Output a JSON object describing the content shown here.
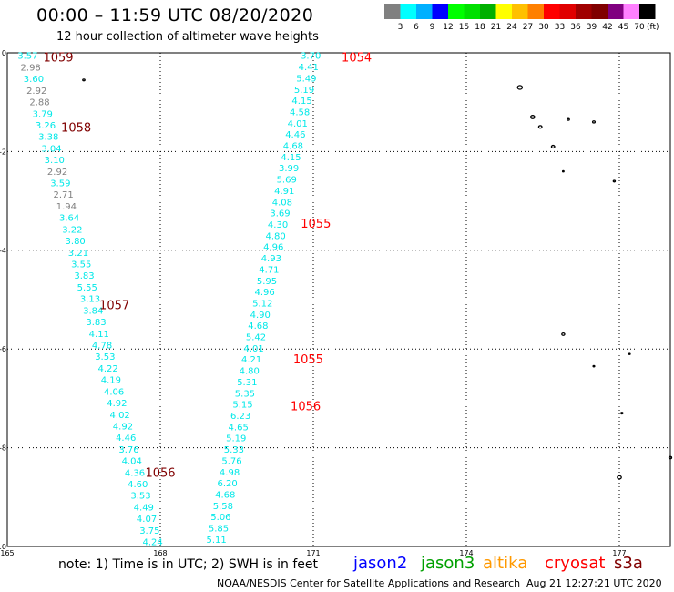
{
  "title": "00:00 – 11:59 UTC 08/20/2020",
  "subtitle": "12 hour collection of altimeter wave heights",
  "colorbar": {
    "colors": [
      "#808080",
      "#00ffff",
      "#00b0ff",
      "#0000ff",
      "#00ff00",
      "#00e000",
      "#00b000",
      "#ffff00",
      "#ffc000",
      "#ff8000",
      "#ff0000",
      "#e00000",
      "#a00000",
      "#800000",
      "#800080",
      "#ff80ff",
      "#000000"
    ],
    "labels": [
      "3",
      "6",
      "9",
      "12",
      "15",
      "18",
      "21",
      "24",
      "27",
      "30",
      "33",
      "36",
      "39",
      "42",
      "45",
      "70"
    ],
    "unit": "(ft)"
  },
  "axes": {
    "lon_ticks": [
      165,
      168,
      171,
      174,
      177
    ],
    "lon_labels": [
      "165",
      "168",
      "171",
      "174",
      "177"
    ],
    "lat_ticks": [
      0,
      -2,
      -4,
      -6,
      -8,
      -10
    ],
    "lat_labels": [
      "0",
      "-2",
      "-4",
      "-6",
      "-8",
      "-10"
    ],
    "lon_range": [
      165,
      178
    ],
    "lat_range": [
      -10,
      0
    ]
  },
  "orbits": [
    {
      "id": "1059",
      "color": "#800000",
      "lon": 166.0,
      "lat": -0.08
    },
    {
      "id": "1058",
      "color": "#800000",
      "lon": 166.35,
      "lat": -1.5
    },
    {
      "id": "1057",
      "color": "#800000",
      "lon": 167.1,
      "lat": -5.1
    },
    {
      "id": "1056",
      "color": "#800000",
      "lon": 168.0,
      "lat": -8.5
    },
    {
      "id": "1054",
      "color": "#ff0000",
      "lon": 171.85,
      "lat": -0.08
    },
    {
      "id": "1055",
      "color": "#ff0000",
      "lon": 171.05,
      "lat": -3.45
    },
    {
      "id": "1055",
      "color": "#ff0000",
      "lon": 170.9,
      "lat": -6.2
    },
    {
      "id": "1056",
      "color": "#ff0000",
      "lon": 170.85,
      "lat": -7.15
    }
  ],
  "track_west": [
    {
      "v": "3.57",
      "c": "#00e8e8"
    },
    {
      "v": "2.98",
      "c": "#808080"
    },
    {
      "v": "3.60",
      "c": "#00e8e8"
    },
    {
      "v": "2.92",
      "c": "#808080"
    },
    {
      "v": "2.88",
      "c": "#808080"
    },
    {
      "v": "3.79",
      "c": "#00e8e8"
    },
    {
      "v": "3.26",
      "c": "#00e8e8"
    },
    {
      "v": "3.38",
      "c": "#00e8e8"
    },
    {
      "v": "3.04",
      "c": "#00e8e8"
    },
    {
      "v": "3.10",
      "c": "#00e8e8"
    },
    {
      "v": "2.92",
      "c": "#808080"
    },
    {
      "v": "3.59",
      "c": "#00e8e8"
    },
    {
      "v": "2.71",
      "c": "#808080"
    },
    {
      "v": "1.94",
      "c": "#808080"
    },
    {
      "v": "3.64",
      "c": "#00e8e8"
    },
    {
      "v": "3.22",
      "c": "#00e8e8"
    },
    {
      "v": "3.80",
      "c": "#00e8e8"
    },
    {
      "v": "3.21",
      "c": "#00e8e8"
    },
    {
      "v": "3.55",
      "c": "#00e8e8"
    },
    {
      "v": "3.83",
      "c": "#00e8e8"
    },
    {
      "v": "5.55",
      "c": "#00e8e8"
    },
    {
      "v": "3.13",
      "c": "#00e8e8"
    },
    {
      "v": "3.84",
      "c": "#00e8e8"
    },
    {
      "v": "3.83",
      "c": "#00e8e8"
    },
    {
      "v": "4.11",
      "c": "#00e8e8"
    },
    {
      "v": "4.78",
      "c": "#00e8e8"
    },
    {
      "v": "3.53",
      "c": "#00e8e8"
    },
    {
      "v": "4.22",
      "c": "#00e8e8"
    },
    {
      "v": "4.19",
      "c": "#00e8e8"
    },
    {
      "v": "4.06",
      "c": "#00e8e8"
    },
    {
      "v": "4.92",
      "c": "#00e8e8"
    },
    {
      "v": "4.02",
      "c": "#00e8e8"
    },
    {
      "v": "4.92",
      "c": "#00e8e8"
    },
    {
      "v": "4.46",
      "c": "#00e8e8"
    },
    {
      "v": "3.76",
      "c": "#00e8e8"
    },
    {
      "v": "4.04",
      "c": "#00e8e8"
    },
    {
      "v": "4.36",
      "c": "#00e8e8"
    },
    {
      "v": "4.60",
      "c": "#00e8e8"
    },
    {
      "v": "3.53",
      "c": "#00e8e8"
    },
    {
      "v": "4.49",
      "c": "#00e8e8"
    },
    {
      "v": "4.07",
      "c": "#00e8e8"
    },
    {
      "v": "3.75",
      "c": "#00e8e8"
    },
    {
      "v": "4.24",
      "c": "#00e8e8"
    }
  ],
  "track_east": [
    "3.70",
    "4.41",
    "5.49",
    "5.19",
    "4.15",
    "4.58",
    "4.01",
    "4.46",
    "4.68",
    "4.15",
    "3.99",
    "5.69",
    "4.91",
    "4.08",
    "3.69",
    "4.30",
    "4.80",
    "4.96",
    "4.93",
    "4.71",
    "5.95",
    "4.96",
    "5.12",
    "4.90",
    "4.68",
    "5.42",
    "4.01",
    "4.21",
    "4.80",
    "5.31",
    "5.35",
    "5.15",
    "6.23",
    "4.65",
    "5.19",
    "5.33",
    "5.76",
    "4.98",
    "6.20",
    "4.68",
    "5.58",
    "5.06",
    "5.85",
    "5.11"
  ],
  "note": "note:  1) Time is in UTC;  2) SWH is in feet",
  "satellites": [
    {
      "name": "jason2",
      "color": "#0000ff"
    },
    {
      "name": "jason3",
      "color": "#00a000"
    },
    {
      "name": "altika",
      "color": "#ff9900"
    },
    {
      "name": "cryosat",
      "color": "#ff0000"
    },
    {
      "name": "s3a",
      "color": "#800000"
    }
  ],
  "credit": "NOAA/NESDIS Center for Satellite Applications and Research",
  "timestamp": "Aug 21 12:27:21 UTC 2020"
}
